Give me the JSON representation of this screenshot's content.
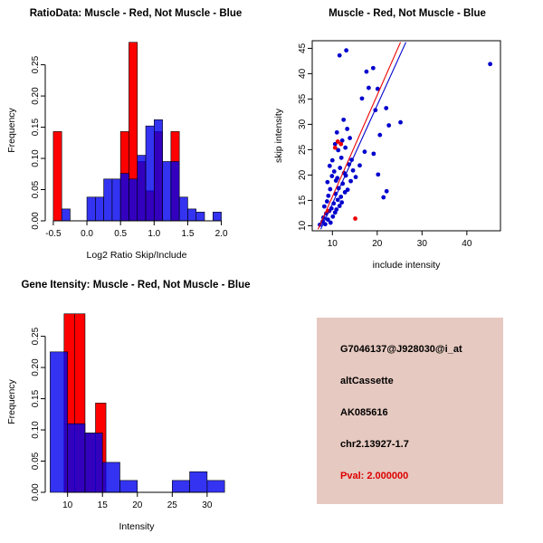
{
  "window": {
    "background": "#ffffff"
  },
  "chart_data": [
    {
      "type": "bar",
      "variant": "overlaid-histogram",
      "title": "RatioData: Muscle - Red, Not Muscle - Blue",
      "xlabel": "Log2 Ratio Skip/Include",
      "ylabel": "Frequency",
      "xlim": [
        -0.62,
        2.1
      ],
      "ylim": [
        0,
        0.29
      ],
      "xticks": [
        -0.5,
        0.0,
        0.5,
        1.0,
        1.5,
        2.0
      ],
      "xtick_labels": [
        "-0.5",
        "0.0",
        "0.5",
        "1.0",
        "1.5",
        "2.0"
      ],
      "yticks": [
        0,
        0.05,
        0.1,
        0.15,
        0.2,
        0.25
      ],
      "ytick_labels": [
        "0.00",
        "0.05",
        "0.10",
        "0.15",
        "0.20",
        "0.25"
      ],
      "axis_style": "open",
      "grid": false,
      "legend": "Muscle = red, Not Muscle = blue (encoded in title)",
      "series": [
        {
          "name": "Muscle",
          "color": "#ff0000",
          "opacity": 1,
          "bins": [
            [
              -0.5,
              -0.375,
              0.143
            ],
            [
              0.5,
              0.625,
              0.143
            ],
            [
              0.625,
              0.75,
              0.286
            ],
            [
              0.75,
              0.875,
              0.095
            ],
            [
              0.875,
              1.0,
              0.048
            ],
            [
              1.0,
              1.125,
              0.143
            ],
            [
              1.25,
              1.375,
              0.143
            ]
          ]
        },
        {
          "name": "Not Muscle",
          "color": "#0000ee",
          "opacity": 0.8,
          "bins": [
            [
              -0.375,
              -0.25,
              0.019
            ],
            [
              0.0,
              0.125,
              0.038
            ],
            [
              0.125,
              0.25,
              0.038
            ],
            [
              0.25,
              0.375,
              0.067
            ],
            [
              0.375,
              0.5,
              0.067
            ],
            [
              0.5,
              0.625,
              0.076
            ],
            [
              0.625,
              0.75,
              0.067
            ],
            [
              0.75,
              0.875,
              0.105
            ],
            [
              0.875,
              1.0,
              0.152
            ],
            [
              1.0,
              1.125,
              0.162
            ],
            [
              1.125,
              1.25,
              0.095
            ],
            [
              1.25,
              1.375,
              0.095
            ],
            [
              1.375,
              1.5,
              0.038
            ],
            [
              1.5,
              1.625,
              0.019
            ],
            [
              1.625,
              1.75,
              0.014
            ],
            [
              1.875,
              2.0,
              0.014
            ]
          ]
        }
      ]
    },
    {
      "type": "scatter",
      "title": "Muscle - Red, Not Muscle - Blue",
      "xlabel": "include intensity",
      "ylabel": "skip intensity",
      "xlim": [
        5.5,
        47.5
      ],
      "ylim": [
        9,
        46.5
      ],
      "xticks": [
        10,
        20,
        30,
        40
      ],
      "xtick_labels": [
        "10",
        "20",
        "30",
        "40"
      ],
      "yticks": [
        10,
        15,
        20,
        25,
        30,
        35,
        40,
        45
      ],
      "ytick_labels": [
        "10",
        "15",
        "20",
        "25",
        "30",
        "35",
        "40",
        "45"
      ],
      "axis_style": "box",
      "grid": false,
      "series": [
        {
          "name": "Not Muscle",
          "color": "#0000cd",
          "points": [
            [
              7.2,
              10.2
            ],
            [
              7.8,
              10.8
            ],
            [
              8.4,
              10.3
            ],
            [
              8.0,
              11.6
            ],
            [
              9.0,
              11.2
            ],
            [
              9.6,
              10.6
            ],
            [
              8.6,
              12.4
            ],
            [
              9.3,
              12.9
            ],
            [
              10.1,
              11.8
            ],
            [
              10.6,
              12.6
            ],
            [
              8.2,
              13.8
            ],
            [
              9.8,
              13.4
            ],
            [
              10.9,
              13.2
            ],
            [
              11.6,
              13.9
            ],
            [
              8.8,
              14.8
            ],
            [
              10.3,
              14.4
            ],
            [
              11.2,
              15.1
            ],
            [
              12.1,
              14.6
            ],
            [
              9.1,
              15.9
            ],
            [
              10.7,
              16.3
            ],
            [
              11.9,
              15.7
            ],
            [
              12.8,
              16.6
            ],
            [
              9.5,
              17.2
            ],
            [
              11.4,
              17.4
            ],
            [
              13.4,
              17.1
            ],
            [
              8.9,
              18.6
            ],
            [
              10.8,
              18.9
            ],
            [
              12.3,
              18.3
            ],
            [
              14.1,
              18.8
            ],
            [
              9.9,
              19.8
            ],
            [
              11.1,
              19.4
            ],
            [
              13.0,
              19.9
            ],
            [
              15.2,
              19.6
            ],
            [
              10.4,
              20.7
            ],
            [
              12.6,
              20.4
            ],
            [
              14.6,
              20.9
            ],
            [
              20.2,
              20.1
            ],
            [
              9.4,
              21.8
            ],
            [
              11.7,
              21.4
            ],
            [
              13.7,
              22.1
            ],
            [
              16.1,
              21.9
            ],
            [
              21.4,
              15.6
            ],
            [
              22.1,
              16.8
            ],
            [
              10.0,
              22.9
            ],
            [
              12.0,
              23.4
            ],
            [
              14.3,
              23.0
            ],
            [
              17.2,
              24.6
            ],
            [
              19.2,
              24.2
            ],
            [
              11.3,
              24.9
            ],
            [
              12.9,
              25.4
            ],
            [
              10.6,
              26.1
            ],
            [
              12.2,
              26.8
            ],
            [
              13.9,
              27.3
            ],
            [
              20.6,
              27.9
            ],
            [
              11.0,
              28.4
            ],
            [
              13.3,
              29.1
            ],
            [
              22.6,
              29.8
            ],
            [
              25.2,
              30.4
            ],
            [
              12.5,
              30.9
            ],
            [
              19.6,
              32.8
            ],
            [
              22.0,
              33.2
            ],
            [
              16.6,
              35.1
            ],
            [
              18.1,
              37.2
            ],
            [
              20.1,
              37.0
            ],
            [
              17.6,
              40.4
            ],
            [
              19.1,
              41.1
            ],
            [
              11.6,
              43.6
            ],
            [
              13.1,
              44.6
            ],
            [
              45.2,
              41.9
            ]
          ]
        },
        {
          "name": "Muscle",
          "color": "#ee0000",
          "points": [
            [
              9.0,
              12.9
            ],
            [
              15.1,
              11.4
            ],
            [
              10.6,
              25.4
            ],
            [
              11.2,
              26.6
            ],
            [
              11.9,
              26.1
            ]
          ]
        }
      ],
      "fit_lines": [
        {
          "name": "muscle-fit",
          "color": "#ee0000",
          "x": [
            6.8,
            25.2
          ],
          "y": [
            9.3,
            46.2
          ]
        },
        {
          "name": "not-muscle-fit",
          "color": "#0000cd",
          "x": [
            7.4,
            26.4
          ],
          "y": [
            9.3,
            46.2
          ]
        }
      ]
    },
    {
      "type": "bar",
      "variant": "overlaid-histogram",
      "title": "Gene Itensity: Muscle - Red, Not Muscle - Blue",
      "xlabel": "Intensity",
      "ylabel": "Frequency",
      "xlim": [
        6.8,
        33
      ],
      "ylim": [
        0,
        0.29
      ],
      "xticks": [
        10,
        15,
        20,
        25,
        30
      ],
      "xtick_labels": [
        "10",
        "15",
        "20",
        "25",
        "30"
      ],
      "yticks": [
        0,
        0.05,
        0.1,
        0.15,
        0.2,
        0.25
      ],
      "ytick_labels": [
        "0.00",
        "0.05",
        "0.10",
        "0.15",
        "0.20",
        "0.25"
      ],
      "axis_style": "open",
      "grid": false,
      "legend": "Muscle = red, Not Muscle = blue (encoded in title)",
      "series": [
        {
          "name": "Muscle",
          "color": "#ff0000",
          "opacity": 1,
          "bins": [
            [
              9.5,
              11,
              0.286
            ],
            [
              11,
              12.5,
              0.286
            ],
            [
              12.5,
              14,
              0.095
            ],
            [
              14,
              15.5,
              0.143
            ]
          ]
        },
        {
          "name": "Not Muscle",
          "color": "#0000ee",
          "opacity": 0.8,
          "bins": [
            [
              7.5,
              10,
              0.225
            ],
            [
              10,
              12.5,
              0.11
            ],
            [
              12.5,
              15,
              0.095
            ],
            [
              15,
              17.5,
              0.048
            ],
            [
              17.5,
              20,
              0.019
            ],
            [
              25,
              27.5,
              0.019
            ],
            [
              27.5,
              30,
              0.033
            ],
            [
              30,
              32.5,
              0.019
            ]
          ]
        }
      ]
    }
  ],
  "info_box": {
    "background": "#e6c9c0",
    "lines": [
      {
        "text": "G7046137@J928030@i_at",
        "color": "#000000"
      },
      {
        "text": "altCassette",
        "color": "#000000"
      },
      {
        "text": "AK085616",
        "color": "#000000"
      },
      {
        "text": "chr2.13927-1.7",
        "color": "#000000"
      },
      {
        "text": "Pval: 2.000000",
        "color": "#dd0000"
      }
    ]
  }
}
